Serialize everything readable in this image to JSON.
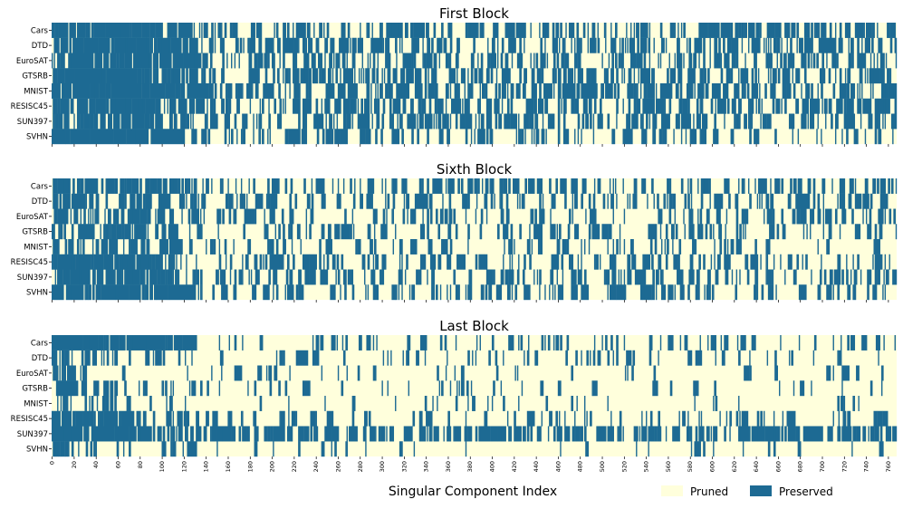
{
  "chart_data": {
    "type": "heatmap",
    "xlabel": "Singular Component Index",
    "x_range": [
      0,
      767
    ],
    "x_tick_labels": [
      "0",
      "20",
      "40",
      "60",
      "80",
      "100",
      "120",
      "140",
      "160",
      "180",
      "200",
      "220",
      "240",
      "260",
      "280",
      "300",
      "320",
      "340",
      "360",
      "380",
      "400",
      "420",
      "440",
      "460",
      "480",
      "500",
      "520",
      "540",
      "560",
      "580",
      "600",
      "620",
      "640",
      "660",
      "680",
      "700",
      "720",
      "740",
      "760"
    ],
    "rows": [
      "Cars",
      "DTD",
      "EuroSAT",
      "GTSRB",
      "MNIST",
      "RESISC45",
      "SUN397",
      "SVHN"
    ],
    "legend": {
      "placement": "bottom-right",
      "items": [
        {
          "label": "Pruned",
          "color": "#ffffdc"
        },
        {
          "label": "Preserved",
          "color": "#1d6a93"
        }
      ]
    },
    "colors": {
      "pruned": "#ffffdc",
      "preserved": "#1d6a93"
    },
    "panels": [
      {
        "title": "First Block",
        "preserved_density": [
          {
            "to": 100,
            "p": [
              0.75,
              0.72,
              0.72,
              0.7,
              0.78,
              0.7,
              0.55,
              0.82
            ]
          },
          {
            "to": 130,
            "p": [
              0.55,
              0.5,
              0.55,
              0.55,
              0.62,
              0.55,
              0.45,
              0.45
            ]
          },
          {
            "to": 768,
            "p": [
              0.3,
              0.3,
              0.3,
              0.3,
              0.33,
              0.3,
              0.28,
              0.18
            ]
          }
        ]
      },
      {
        "title": "Sixth Block",
        "preserved_density": [
          {
            "to": 110,
            "p": [
              0.62,
              0.4,
              0.45,
              0.42,
              0.3,
              0.55,
              0.6,
              0.72
            ]
          },
          {
            "to": 140,
            "p": [
              0.35,
              0.25,
              0.25,
              0.25,
              0.2,
              0.3,
              0.35,
              0.4
            ]
          },
          {
            "to": 768,
            "p": [
              0.25,
              0.18,
              0.18,
              0.18,
              0.12,
              0.2,
              0.22,
              0.18
            ]
          }
        ]
      },
      {
        "title": "Last Block",
        "preserved_density": [
          {
            "to": 20,
            "p": [
              0.85,
              0.6,
              0.45,
              0.5,
              0.45,
              0.7,
              0.8,
              0.45
            ]
          },
          {
            "to": 70,
            "p": [
              0.7,
              0.4,
              0.08,
              0.25,
              0.25,
              0.55,
              0.72,
              0.15
            ]
          },
          {
            "to": 125,
            "p": [
              0.55,
              0.25,
              0.05,
              0.1,
              0.08,
              0.35,
              0.62,
              0.1
            ]
          },
          {
            "to": 260,
            "p": [
              0.15,
              0.1,
              0.04,
              0.08,
              0.05,
              0.12,
              0.55,
              0.04
            ]
          },
          {
            "to": 768,
            "p": [
              0.14,
              0.1,
              0.06,
              0.07,
              0.05,
              0.12,
              0.42,
              0.03
            ]
          }
        ]
      }
    ]
  }
}
